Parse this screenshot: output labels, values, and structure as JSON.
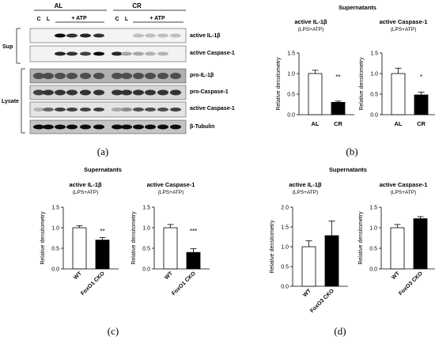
{
  "western_blot": {
    "groups": [
      {
        "label": "AL",
        "lanes": [
          "C",
          "L"
        ],
        "treatment": "+ ATP"
      },
      {
        "label": "CR",
        "lanes": [
          "C",
          "L"
        ],
        "treatment": "+ ATP"
      }
    ],
    "sections": [
      "Sup",
      "Lysate"
    ],
    "bands": [
      "active IL-1β",
      "active Caspase-1",
      "pro-IL-1β",
      "pro-Caspase-1",
      "active Caspase-1",
      "β-Tubulin"
    ]
  },
  "panel_labels": [
    "(a)",
    "(b)",
    "(c)",
    "(d)"
  ],
  "section_titles": {
    "b": "Supernatants",
    "c": "Supernatants",
    "d": "Supernatants"
  },
  "chart_data": [
    {
      "type": "bar",
      "panel": "b",
      "title": "active IL-1β",
      "subtitle": "(LPS+ATP)",
      "ylabel": "Relative densitometry",
      "categories": [
        "AL",
        "CR"
      ],
      "values": [
        1.0,
        0.3
      ],
      "errors": [
        0.08,
        0.03
      ],
      "fills": [
        "#ffffff",
        "#000000"
      ],
      "ylim": [
        0,
        1.5
      ],
      "yticks": [
        "0.0",
        "0.5",
        "1.0",
        "1.5"
      ],
      "significance": "**"
    },
    {
      "type": "bar",
      "panel": "b",
      "title": "active Caspase-1",
      "subtitle": "(LPS+ATP)",
      "ylabel": "Relative densitometry",
      "categories": [
        "AL",
        "CR"
      ],
      "values": [
        1.0,
        0.48
      ],
      "errors": [
        0.13,
        0.07
      ],
      "fills": [
        "#ffffff",
        "#000000"
      ],
      "ylim": [
        0,
        1.5
      ],
      "yticks": [
        "0.0",
        "0.5",
        "1.0",
        "1.5"
      ],
      "significance": "*"
    },
    {
      "type": "bar",
      "panel": "c",
      "title": "active IL-1β",
      "subtitle": "(LPS+ATP)",
      "ylabel": "Relative densitometry",
      "categories": [
        "WT",
        "FoxO1 CKO"
      ],
      "values": [
        1.0,
        0.7
      ],
      "errors": [
        0.05,
        0.06
      ],
      "fills": [
        "#ffffff",
        "#000000"
      ],
      "ylim": [
        0,
        1.5
      ],
      "yticks": [
        "0.0",
        "0.5",
        "1.0",
        "1.5"
      ],
      "significance": "**"
    },
    {
      "type": "bar",
      "panel": "c",
      "title": "active Caspase-1",
      "subtitle": "(LPS+ATP)",
      "ylabel": "Relative densitometry",
      "categories": [
        "WT",
        "FoxO1 CKO"
      ],
      "values": [
        1.0,
        0.4
      ],
      "errors": [
        0.08,
        0.09
      ],
      "fills": [
        "#ffffff",
        "#000000"
      ],
      "ylim": [
        0,
        1.5
      ],
      "yticks": [
        "0.0",
        "0.5",
        "1.0",
        "1.5"
      ],
      "significance": "***"
    },
    {
      "type": "bar",
      "panel": "d",
      "title": "active IL-1β",
      "subtitle": "(LPS+ATP)",
      "ylabel": "Relative densitometry",
      "categories": [
        "WT",
        "FoxO3 CKO"
      ],
      "values": [
        1.0,
        1.28
      ],
      "errors": [
        0.15,
        0.37
      ],
      "fills": [
        "#ffffff",
        "#000000"
      ],
      "ylim": [
        0,
        2.0
      ],
      "yticks": [
        "0.0",
        "0.5",
        "1.0",
        "1.5",
        "2.0"
      ],
      "significance": ""
    },
    {
      "type": "bar",
      "panel": "d",
      "title": "active Caspase-1",
      "subtitle": "(LPS+ATP)",
      "ylabel": "Relative densitometry",
      "categories": [
        "WT",
        "FoxO3 CKO"
      ],
      "values": [
        1.0,
        1.22
      ],
      "errors": [
        0.08,
        0.05
      ],
      "fills": [
        "#ffffff",
        "#000000"
      ],
      "ylim": [
        0,
        1.5
      ],
      "yticks": [
        "0.0",
        "0.5",
        "1.0",
        "1.5"
      ],
      "significance": ""
    }
  ]
}
